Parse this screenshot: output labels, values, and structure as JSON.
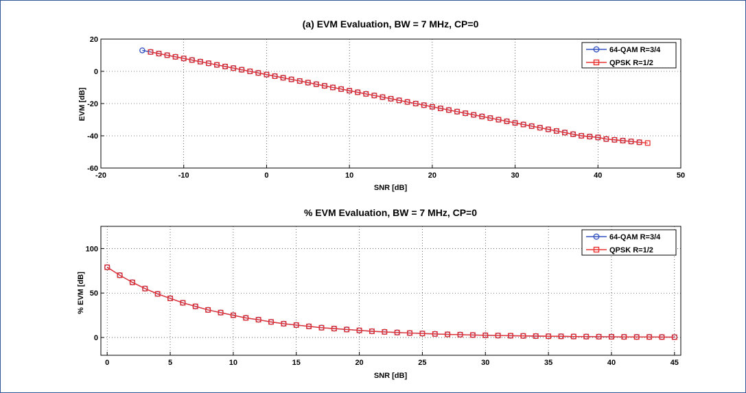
{
  "chart_data": [
    {
      "type": "line",
      "title": "(a) EVM Evaluation, BW = 7 MHz, CP=0",
      "xlabel": "SNR [dB]",
      "ylabel": "EVM [dB]",
      "xlim": [
        -20,
        50
      ],
      "ylim": [
        -60,
        20
      ],
      "xticks": [
        -20,
        -10,
        0,
        10,
        20,
        30,
        40,
        50
      ],
      "yticks": [
        -60,
        -40,
        -20,
        0,
        20
      ],
      "xtick_labels": [
        "-20",
        "-10",
        "0",
        "10",
        "20",
        "30",
        "40",
        "50"
      ],
      "ytick_labels": [
        "-60",
        "-40",
        "-20",
        "0",
        "20"
      ],
      "grid": true,
      "legend_position": "top-right",
      "series": [
        {
          "name": "64-QAM R=3/4",
          "color": "#2f4fbf",
          "marker": "circle",
          "x": [
            -15,
            -14,
            -13,
            -12,
            -11,
            -10,
            -9,
            -8,
            -7,
            -6,
            -5,
            -4,
            -3,
            -2,
            -1,
            0,
            1,
            2,
            3,
            4,
            5,
            6,
            7,
            8,
            9,
            10,
            11,
            12,
            13,
            14,
            15,
            16,
            17,
            18,
            19,
            20,
            21,
            22,
            23,
            24,
            25,
            26,
            27,
            28,
            29,
            30,
            31,
            32,
            33,
            34,
            35,
            36,
            37,
            38,
            39,
            40,
            41,
            42,
            43,
            44,
            45
          ],
          "y": [
            13,
            12,
            11,
            10,
            9,
            8,
            7,
            6,
            5,
            4,
            3,
            2,
            1,
            0,
            -1,
            -2,
            -3,
            -4,
            -5,
            -6,
            -7,
            -8,
            -9,
            -10,
            -11,
            -12,
            -13,
            -14,
            -15,
            -16,
            -17,
            -18,
            -19,
            -20,
            -21,
            -22,
            -23,
            -24,
            -25,
            -26,
            -27,
            -28,
            -29,
            -30,
            -31,
            -32,
            -33,
            -34,
            -35,
            -36,
            -37,
            -38,
            -39,
            -40,
            -40.5,
            -41,
            -42,
            -42.5,
            -43,
            -43.5,
            -44
          ]
        },
        {
          "name": "QPSK R=1/2",
          "color": "#e8302f",
          "marker": "square",
          "x": [
            -14,
            -13,
            -12,
            -11,
            -10,
            -9,
            -8,
            -7,
            -6,
            -5,
            -4,
            -3,
            -2,
            -1,
            0,
            1,
            2,
            3,
            4,
            5,
            6,
            7,
            8,
            9,
            10,
            11,
            12,
            13,
            14,
            15,
            16,
            17,
            18,
            19,
            20,
            21,
            22,
            23,
            24,
            25,
            26,
            27,
            28,
            29,
            30,
            31,
            32,
            33,
            34,
            35,
            36,
            37,
            38,
            39,
            40,
            41,
            42,
            43,
            44,
            45,
            46
          ],
          "y": [
            12,
            11,
            10,
            9,
            8,
            7,
            6,
            5,
            4,
            3,
            2,
            1,
            0,
            -1,
            -2,
            -3,
            -4,
            -5,
            -6,
            -7,
            -8,
            -9,
            -10,
            -11,
            -12,
            -13,
            -14,
            -15,
            -16,
            -17,
            -18,
            -19,
            -20,
            -21,
            -22,
            -23,
            -24,
            -25,
            -26,
            -27,
            -28,
            -29,
            -30,
            -31,
            -32,
            -33,
            -34,
            -35,
            -36,
            -37,
            -38,
            -39,
            -40,
            -40.5,
            -41,
            -42,
            -42.5,
            -43,
            -43.5,
            -44,
            -44.5
          ]
        }
      ]
    },
    {
      "type": "line",
      "title": "% EVM Evaluation, BW = 7 MHz, CP=0",
      "xlabel": "SNR [dB]",
      "ylabel": "% EVM [dB]",
      "xlim": [
        -0.5,
        45.5
      ],
      "ylim": [
        -20,
        125
      ],
      "xticks": [
        0,
        5,
        10,
        15,
        20,
        25,
        30,
        35,
        40,
        45
      ],
      "yticks": [
        0,
        50,
        100
      ],
      "xtick_labels": [
        "0",
        "5",
        "10",
        "15",
        "20",
        "25",
        "30",
        "35",
        "40",
        "45"
      ],
      "ytick_labels": [
        "0",
        "50",
        "100"
      ],
      "grid": true,
      "legend_position": "top-right",
      "series": [
        {
          "name": "64-QAM R=3/4",
          "color": "#2f4fbf",
          "marker": "circle",
          "x": [
            0,
            1,
            2,
            3,
            4,
            5,
            6,
            7,
            8,
            9,
            10,
            11,
            12,
            13,
            14,
            15,
            16,
            17,
            18,
            19,
            20,
            21,
            22,
            23,
            24,
            25,
            26,
            27,
            28,
            29,
            30,
            31,
            32,
            33,
            34,
            35,
            36,
            37,
            38,
            39,
            40,
            41,
            42,
            43,
            44,
            45
          ],
          "y": [
            79,
            70,
            62,
            55,
            49,
            44,
            39,
            35,
            31,
            28,
            25,
            22,
            20,
            17.5,
            15.5,
            14,
            12.5,
            11,
            10,
            9,
            8,
            7,
            6.3,
            5.6,
            5,
            4.5,
            4,
            3.5,
            3.2,
            2.8,
            2.5,
            2.2,
            2,
            1.8,
            1.6,
            1.4,
            1.3,
            1.1,
            1,
            0.9,
            0.8,
            0.7,
            0.6,
            0.6,
            0.5,
            0.4
          ]
        },
        {
          "name": "QPSK R=1/2",
          "color": "#e8302f",
          "marker": "square",
          "x": [
            0,
            1,
            2,
            3,
            4,
            5,
            6,
            7,
            8,
            9,
            10,
            11,
            12,
            13,
            14,
            15,
            16,
            17,
            18,
            19,
            20,
            21,
            22,
            23,
            24,
            25,
            26,
            27,
            28,
            29,
            30,
            31,
            32,
            33,
            34,
            35,
            36,
            37,
            38,
            39,
            40,
            41,
            42,
            43,
            44,
            45
          ],
          "y": [
            79,
            70,
            62,
            55,
            49,
            44,
            39,
            35,
            31,
            28,
            25,
            22,
            20,
            17.5,
            15.5,
            14,
            12.5,
            11,
            10,
            9,
            8,
            7,
            6.3,
            5.6,
            5,
            4.5,
            4,
            3.5,
            3.2,
            2.8,
            2.5,
            2.2,
            2,
            1.8,
            1.6,
            1.4,
            1.3,
            1.1,
            1,
            0.9,
            0.8,
            0.7,
            0.6,
            0.6,
            0.5,
            0.4
          ]
        }
      ]
    }
  ]
}
